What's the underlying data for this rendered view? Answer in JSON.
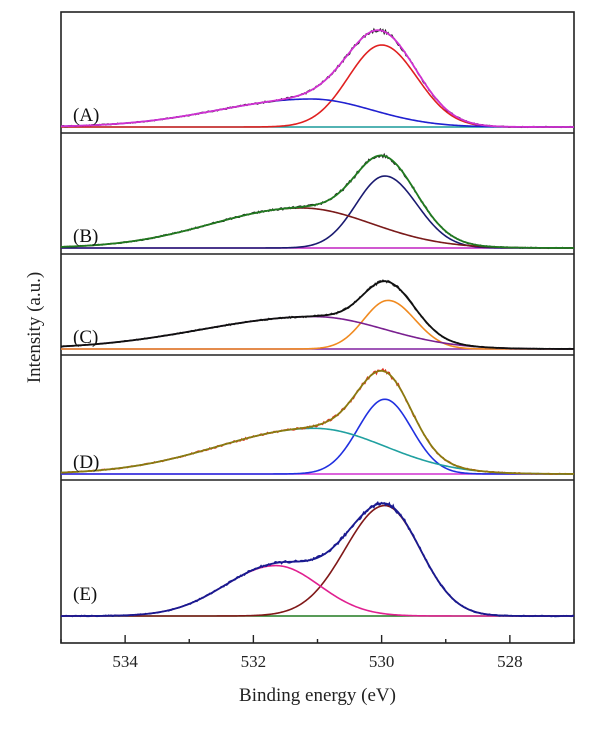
{
  "chart_data": {
    "type": "line",
    "xlabel": "Binding energy (eV)",
    "ylabel": "Intensity (a.u.)",
    "xlim": [
      535,
      527
    ],
    "x_reversed": true,
    "x_ticks": [
      534,
      532,
      530,
      528
    ],
    "x_tick_labels": [
      "534",
      "532",
      "530",
      "528"
    ],
    "grid": false,
    "panels": [
      {
        "label": "(A)",
        "ylim": [
          0,
          1.05
        ],
        "experimental_color": "#222222",
        "baseline_color": "#1a9a9a",
        "envelope_color": "#d030d0",
        "components": [
          {
            "center": 530.0,
            "sigma_left": 0.52,
            "sigma_right": 0.55,
            "height": 0.82,
            "color": "#e02020"
          },
          {
            "center": 531.1,
            "sigma_left": 1.45,
            "sigma_right": 0.95,
            "height": 0.28,
            "color": "#2020d0"
          }
        ]
      },
      {
        "label": "(B)",
        "ylim": [
          0,
          1.05
        ],
        "experimental_color": "#222222",
        "baseline_color": "#c020c0",
        "envelope_color": "#207a20",
        "components": [
          {
            "center": 529.95,
            "sigma_left": 0.45,
            "sigma_right": 0.5,
            "height": 0.72,
            "color": "#1a1a70"
          },
          {
            "center": 531.25,
            "sigma_left": 1.4,
            "sigma_right": 1.1,
            "height": 0.4,
            "color": "#7a1a1a"
          }
        ]
      },
      {
        "label": "(C)",
        "ylim": [
          0,
          1.05
        ],
        "experimental_color": "#333333",
        "baseline_color": "#8020a0",
        "envelope_color": "#101010",
        "components": [
          {
            "center": 529.9,
            "sigma_left": 0.38,
            "sigma_right": 0.42,
            "height": 0.6,
            "color": "#f08a20"
          },
          {
            "center": 531.05,
            "sigma_left": 1.75,
            "sigma_right": 1.1,
            "height": 0.4,
            "color": "#7a2090"
          }
        ]
      },
      {
        "label": "(D)",
        "ylim": [
          0,
          1.05
        ],
        "experimental_color": "#e03020",
        "baseline_color": "#d030d0",
        "envelope_color": "#8a7a10",
        "components": [
          {
            "center": 529.95,
            "sigma_left": 0.42,
            "sigma_right": 0.42,
            "height": 0.72,
            "color": "#2030e0"
          },
          {
            "center": 531.05,
            "sigma_left": 1.5,
            "sigma_right": 1.1,
            "height": 0.44,
            "color": "#20a0a0"
          }
        ]
      },
      {
        "label": "(E)",
        "ylim": [
          0,
          1.05
        ],
        "experimental_color": "#1a1a90",
        "baseline_color": "#207a20",
        "envelope_color": "#1a1a90",
        "components": [
          {
            "center": 529.95,
            "sigma_left": 0.62,
            "sigma_right": 0.55,
            "height": 0.92,
            "color": "#801818"
          },
          {
            "center": 531.65,
            "sigma_left": 0.8,
            "sigma_right": 0.68,
            "height": 0.42,
            "color": "#e02090"
          }
        ]
      }
    ]
  }
}
